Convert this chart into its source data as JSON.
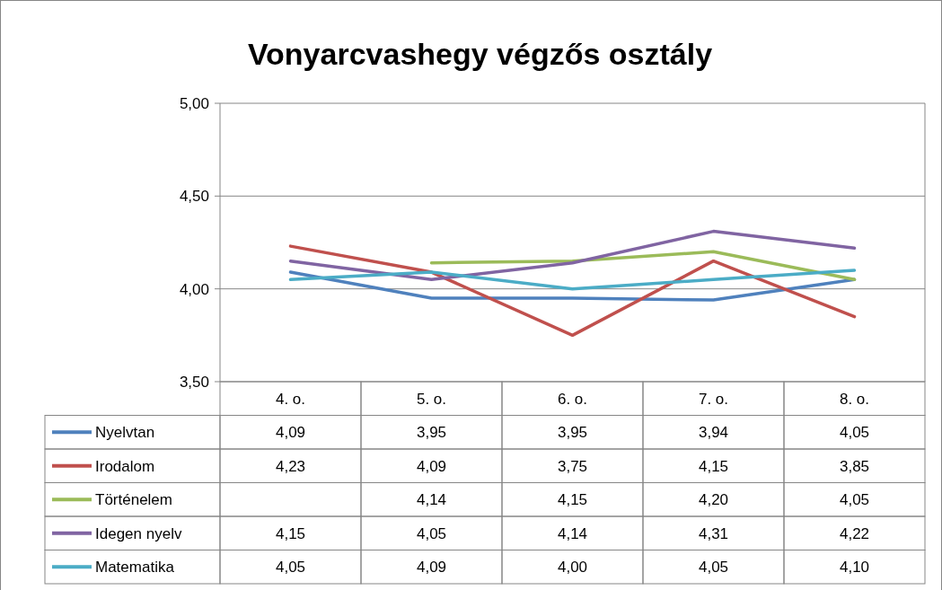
{
  "chart_data": {
    "type": "line",
    "title": "Vonyarcvashegy végzős osztály",
    "categories": [
      "4. o.",
      "5. o.",
      "6. o.",
      "7. o.",
      "8. o."
    ],
    "series": [
      {
        "name": "Nyelvtan",
        "color": "#4f81bd",
        "values": [
          4.09,
          3.95,
          3.95,
          3.94,
          4.05
        ],
        "value_labels": [
          "4,09",
          "3,95",
          "3,95",
          "3,94",
          "4,05"
        ]
      },
      {
        "name": "Irodalom",
        "color": "#c0504d",
        "values": [
          4.23,
          4.09,
          3.75,
          4.15,
          3.85
        ],
        "value_labels": [
          "4,23",
          "4,09",
          "3,75",
          "4,15",
          "3,85"
        ]
      },
      {
        "name": "Történelem",
        "color": "#9bbb59",
        "values": [
          null,
          4.14,
          4.15,
          4.2,
          4.05
        ],
        "value_labels": [
          null,
          "4,14",
          "4,15",
          "4,20",
          "4,05"
        ]
      },
      {
        "name": "Idegen nyelv",
        "color": "#8064a2",
        "values": [
          4.15,
          4.05,
          4.14,
          4.31,
          4.22
        ],
        "value_labels": [
          "4,15",
          "4,05",
          "4,14",
          "4,31",
          "4,22"
        ]
      },
      {
        "name": "Matematika",
        "color": "#4bacc6",
        "values": [
          4.05,
          4.09,
          4.0,
          4.05,
          4.1
        ],
        "value_labels": [
          "4,05",
          "4,09",
          "4,00",
          "4,05",
          "4,10"
        ]
      }
    ],
    "ylim": [
      3.5,
      5
    ],
    "yticks": [
      {
        "value": 3.5,
        "label": "3,50"
      },
      {
        "value": 4,
        "label": "4,00"
      },
      {
        "value": 4.5,
        "label": "4,50"
      },
      {
        "value": 5,
        "label": "5,00"
      }
    ],
    "grid": "y",
    "legend": "bottom",
    "marker": "none",
    "line_style": "solid"
  }
}
